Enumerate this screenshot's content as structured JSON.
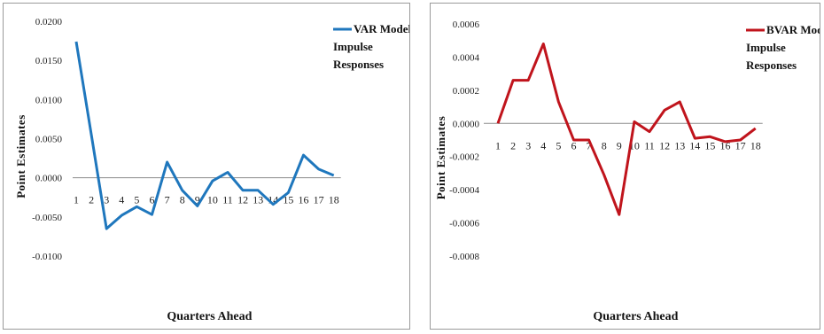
{
  "chart_data": [
    {
      "type": "line",
      "xlabel": "Quarters Ahead",
      "ylabel": "Point Estimates",
      "categories": [
        "1",
        "2",
        "3",
        "4",
        "5",
        "6",
        "7",
        "8",
        "9",
        "10",
        "11",
        "12",
        "13",
        "14",
        "15",
        "16",
        "17",
        "18"
      ],
      "ylim": [
        -0.01,
        0.02
      ],
      "yticks": [
        "0.0200",
        "0.0150",
        "0.0100",
        "0.0050",
        "0.0000",
        "-0.0050",
        "-0.0100"
      ],
      "ytick_values": [
        0.02,
        0.015,
        0.01,
        0.005,
        0.0,
        -0.005,
        -0.01
      ],
      "legend_position": "top-right",
      "series": [
        {
          "name_lines": [
            "VAR Model",
            "Impulse",
            "Responses"
          ],
          "color": "#1f77bd",
          "values": [
            0.0174,
            0.0055,
            -0.0065,
            -0.0048,
            -0.0037,
            -0.0047,
            0.002,
            -0.0016,
            -0.0036,
            -0.0004,
            0.0007,
            -0.0016,
            -0.0016,
            -0.0034,
            -0.0019,
            0.0029,
            0.0011,
            0.0003
          ]
        }
      ]
    },
    {
      "type": "line",
      "xlabel": "Quarters Ahead",
      "ylabel": "Point Estimates",
      "categories": [
        "1",
        "2",
        "3",
        "4",
        "5",
        "6",
        "7",
        "8",
        "9",
        "10",
        "11",
        "12",
        "13",
        "14",
        "15",
        "16",
        "17",
        "18"
      ],
      "ylim": [
        -0.0008,
        0.0006
      ],
      "yticks": [
        "0.0006",
        "0.0004",
        "0.0002",
        "0.0000",
        "-0.0002",
        "-0.0004",
        "-0.0006",
        "-0.0008"
      ],
      "ytick_values": [
        0.0006,
        0.0004,
        0.0002,
        0.0,
        -0.0002,
        -0.0004,
        -0.0006,
        -0.0008
      ],
      "legend_position": "top-right",
      "series": [
        {
          "name_lines": [
            "BVAR Model",
            "Impulse",
            "Responses"
          ],
          "color": "#c0141c",
          "values": [
            0.0,
            0.00026,
            0.00026,
            0.00048,
            0.00013,
            -0.0001,
            -0.0001,
            -0.00031,
            -0.00055,
            1e-05,
            -5e-05,
            8e-05,
            0.00013,
            -9e-05,
            -8e-05,
            -0.00011,
            -0.0001,
            -3e-05
          ]
        }
      ]
    }
  ]
}
